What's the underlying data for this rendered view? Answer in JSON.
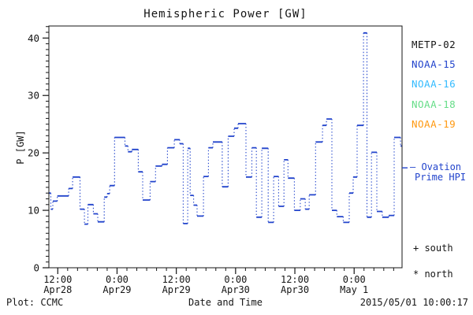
{
  "title": "Hemispheric Power [GW]",
  "legend": {
    "items": [
      {
        "label": "METP-02",
        "color": "#151515"
      },
      {
        "label": "NOAA-15",
        "color": "#2244cc"
      },
      {
        "label": "NOAA-16",
        "color": "#33bbff"
      },
      {
        "label": "NOAA-18",
        "color": "#66dd88"
      },
      {
        "label": "NOAA-19",
        "color": "#ff9911"
      }
    ]
  },
  "annotations": {
    "ovation_line1": "— Ovation",
    "ovation_line2": "Prime HPI",
    "ovation_color": "#2244cc",
    "south_marker": "+ south",
    "north_marker": "* north"
  },
  "footer": {
    "plot_credit": "Plot: CCMC",
    "xlabel": "Date and Time",
    "timestamp": "2015/05/01 10:00:17"
  },
  "chart_data": {
    "type": "line",
    "style": "post-step line; solid horizontal segments, dotted vertical connectors",
    "title": "Hemispheric Power [GW]",
    "ylabel": "P [GW]",
    "xlabel": "Date and Time",
    "series_name": "Hemispheric Power Index (NOAA-15 color)",
    "color": "#2244cc",
    "ylim": [
      0,
      42.1
    ],
    "y_major_ticks": [
      0,
      10,
      20,
      30,
      40
    ],
    "y_minor_step": 1,
    "x_hours_range": [
      10.2,
      81.7
    ],
    "x_minor_step_hours": 2,
    "x_major_ticks": [
      {
        "t": 12,
        "time": "12:00",
        "date": "Apr28"
      },
      {
        "t": 24,
        "time": "0:00",
        "date": "Apr29"
      },
      {
        "t": 36,
        "time": "12:00",
        "date": "Apr29"
      },
      {
        "t": 48,
        "time": "0:00",
        "date": "Apr30"
      },
      {
        "t": 60,
        "time": "12:00",
        "date": "Apr30"
      },
      {
        "t": 72,
        "time": "0:00",
        "date": "May 1"
      }
    ],
    "ovation_tick_value": 17.4,
    "steps_note": "t = hours since Apr28 00:00 UT, v = power in GW, value holds until next t",
    "steps": [
      [
        10.2,
        13.0
      ],
      [
        10.6,
        10.2
      ],
      [
        11.0,
        11.6
      ],
      [
        11.9,
        12.5
      ],
      [
        14.2,
        13.8
      ],
      [
        15.0,
        15.8
      ],
      [
        16.5,
        10.2
      ],
      [
        17.4,
        7.6
      ],
      [
        18.1,
        11.0
      ],
      [
        19.2,
        9.4
      ],
      [
        20.1,
        8.0
      ],
      [
        21.4,
        12.3
      ],
      [
        22.0,
        12.9
      ],
      [
        22.5,
        14.3
      ],
      [
        23.5,
        22.7
      ],
      [
        25.6,
        21.2
      ],
      [
        26.2,
        20.2
      ],
      [
        27.0,
        20.6
      ],
      [
        28.3,
        16.7
      ],
      [
        29.2,
        11.8
      ],
      [
        30.7,
        15.0
      ],
      [
        31.8,
        17.7
      ],
      [
        33.1,
        18.0
      ],
      [
        34.2,
        20.9
      ],
      [
        35.6,
        22.3
      ],
      [
        36.7,
        21.6
      ],
      [
        37.4,
        7.7
      ],
      [
        38.3,
        20.8
      ],
      [
        38.8,
        12.6
      ],
      [
        39.5,
        10.9
      ],
      [
        40.2,
        9.0
      ],
      [
        41.5,
        15.9
      ],
      [
        42.5,
        20.9
      ],
      [
        43.4,
        21.9
      ],
      [
        45.3,
        14.1
      ],
      [
        46.5,
        22.9
      ],
      [
        47.7,
        24.3
      ],
      [
        48.5,
        25.1
      ],
      [
        50.1,
        15.8
      ],
      [
        51.3,
        20.9
      ],
      [
        52.2,
        8.8
      ],
      [
        53.3,
        20.8
      ],
      [
        54.6,
        7.9
      ],
      [
        55.7,
        15.9
      ],
      [
        56.7,
        10.7
      ],
      [
        57.8,
        18.8
      ],
      [
        58.6,
        15.6
      ],
      [
        59.9,
        10.0
      ],
      [
        61.1,
        12.0
      ],
      [
        62.1,
        10.2
      ],
      [
        62.9,
        12.7
      ],
      [
        64.2,
        21.9
      ],
      [
        65.6,
        24.8
      ],
      [
        66.4,
        25.9
      ],
      [
        67.5,
        10.0
      ],
      [
        68.5,
        8.9
      ],
      [
        69.8,
        7.9
      ],
      [
        71.0,
        13.0
      ],
      [
        71.8,
        15.8
      ],
      [
        72.6,
        24.8
      ],
      [
        73.9,
        40.9
      ],
      [
        74.6,
        8.8
      ],
      [
        75.5,
        20.1
      ],
      [
        76.6,
        9.8
      ],
      [
        77.7,
        8.8
      ],
      [
        79.0,
        9.1
      ],
      [
        80.1,
        22.7
      ],
      [
        81.4,
        21.2
      ]
    ],
    "end_t": 81.7
  }
}
